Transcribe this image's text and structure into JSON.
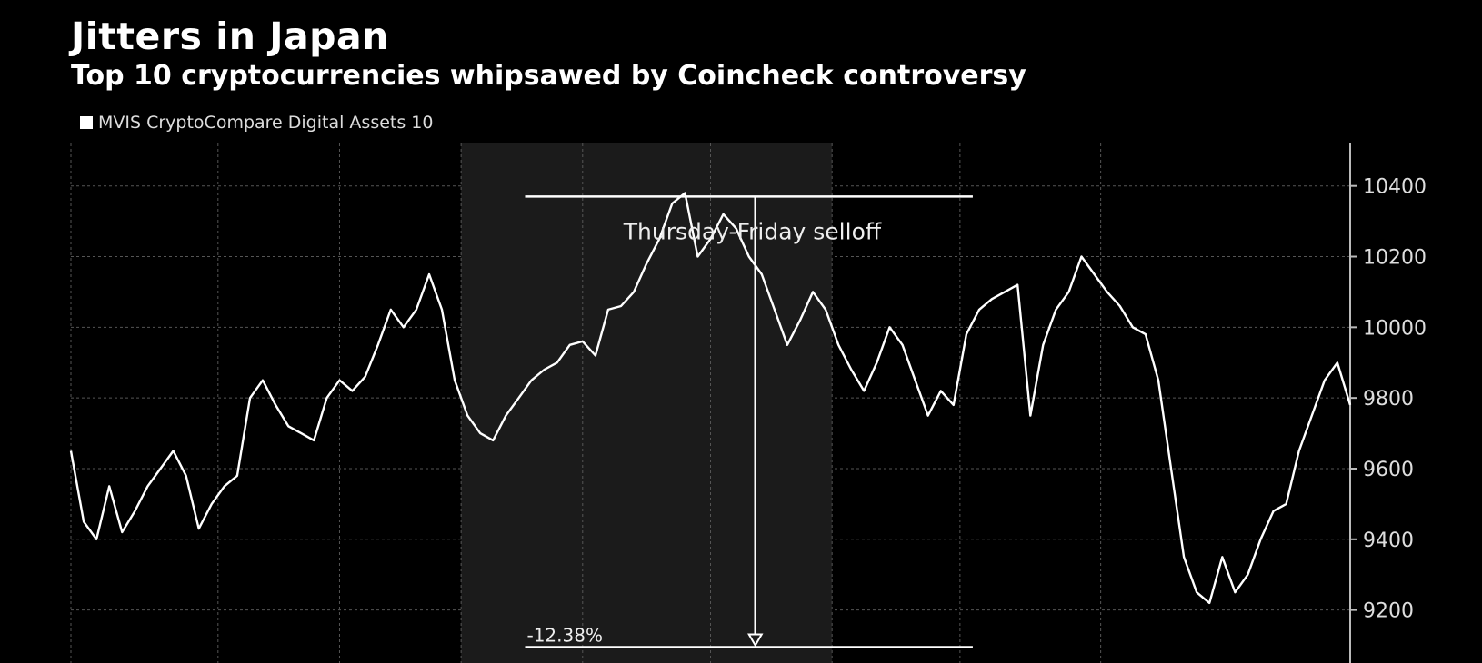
{
  "chart_data": {
    "type": "line",
    "title": "Jitters in Japan",
    "subtitle": "Top 10 cryptocurrencies whipsawed by Coincheck controversy",
    "legend": [
      "MVIS CryptoCompare Digital Assets 10"
    ],
    "legend_placement": "top-left",
    "grid": true,
    "xlabel": "",
    "ylabel": "",
    "ylim": [
      9050,
      10520
    ],
    "yticks": [
      9200,
      9400,
      9600,
      9800,
      10000,
      10200,
      10400
    ],
    "series": [
      {
        "name": "MVIS CryptoCompare Digital Assets 10",
        "x": [
          0,
          2,
          4,
          6,
          8,
          10,
          12,
          14,
          16,
          18,
          20,
          22,
          24,
          26,
          28,
          30,
          32,
          34,
          36,
          38,
          40,
          42,
          44,
          46,
          48,
          50,
          52,
          54,
          56,
          58,
          60,
          62,
          64,
          66,
          68,
          70,
          72,
          74,
          76,
          78,
          80,
          82,
          84,
          86,
          88,
          90,
          92,
          94,
          96,
          98,
          100,
          102,
          104,
          106,
          108,
          110,
          112,
          114,
          116,
          118,
          120,
          122,
          124,
          126,
          128,
          130,
          132,
          134,
          136,
          138,
          140,
          142,
          144,
          146,
          148,
          150,
          152,
          154,
          156,
          158,
          160,
          162,
          164,
          166,
          168,
          170,
          172,
          174,
          176,
          178,
          180,
          182,
          184,
          186,
          188,
          190,
          192,
          194,
          196,
          198,
          200
        ],
        "values": [
          9650,
          9450,
          9400,
          9550,
          9420,
          9480,
          9550,
          9600,
          9650,
          9580,
          9430,
          9500,
          9550,
          9580,
          9800,
          9850,
          9780,
          9720,
          9700,
          9680,
          9800,
          9850,
          9820,
          9860,
          9950,
          10050,
          10000,
          10050,
          10150,
          10050,
          9850,
          9750,
          9700,
          9680,
          9750,
          9800,
          9850,
          9880,
          9900,
          9950,
          9960,
          9920,
          10050,
          10060,
          10100,
          10180,
          10250,
          10350,
          10380,
          10200,
          10250,
          10320,
          10280,
          10200,
          10150,
          10050,
          9950,
          10020,
          10100,
          10050,
          9950,
          9880,
          9820,
          9900,
          10000,
          9950,
          9850,
          9750,
          9820,
          9780,
          9980,
          10050,
          10080,
          10100,
          10120,
          9750,
          9950,
          10050,
          10100,
          10200,
          10150,
          10100,
          10060,
          10000,
          9980,
          9850,
          9600,
          9350,
          9250,
          9220,
          9350,
          9250,
          9300,
          9400,
          9480,
          9500,
          9650,
          9750,
          9850,
          9900,
          9780
        ]
      }
    ],
    "shaded_region": {
      "x_start": 61,
      "x_end": 119,
      "x_end_line": 139
    },
    "annotations": [
      {
        "text": "Thursday-Friday selloff"
      },
      {
        "text": "-12.38%"
      }
    ],
    "selloff": {
      "high": 10370,
      "low": 9095,
      "x_start": 71,
      "x_arrow": 107,
      "x_end": 141
    }
  }
}
